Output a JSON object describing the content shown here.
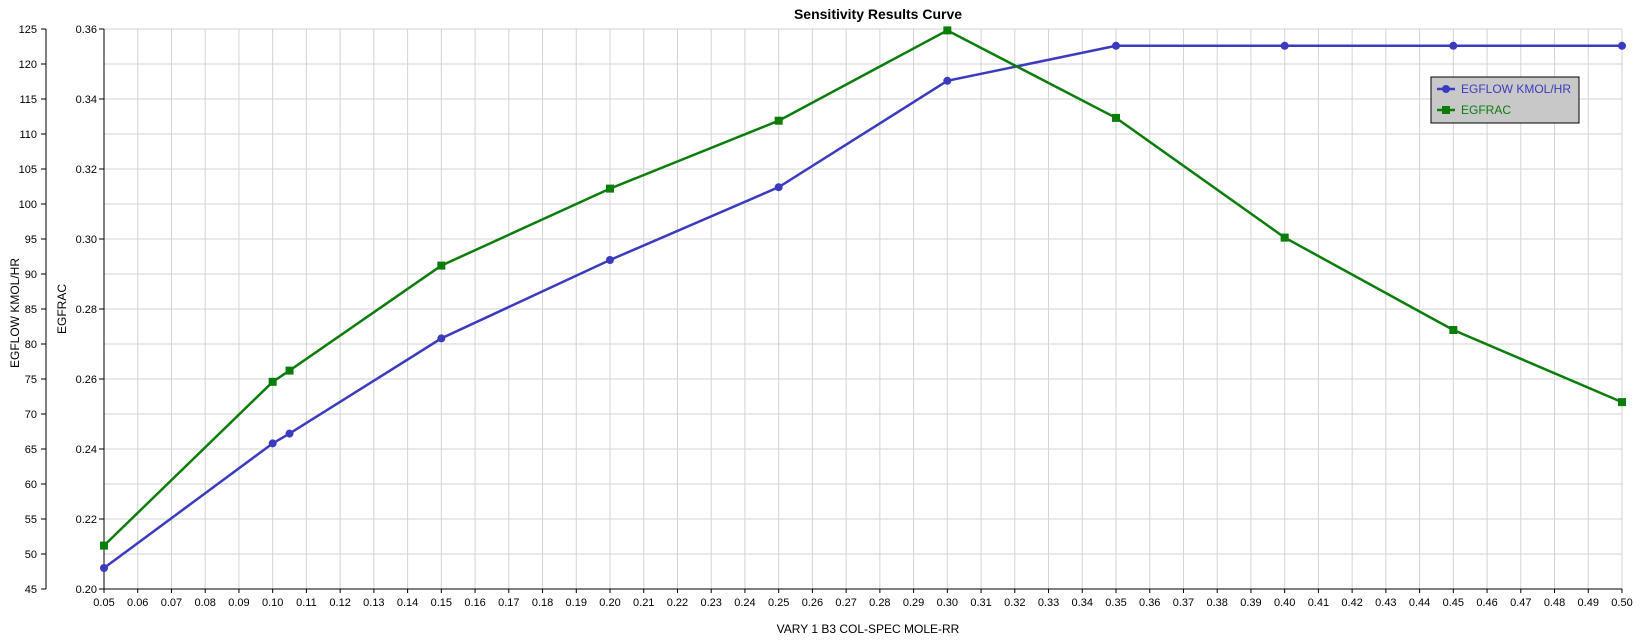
{
  "chart_data": {
    "type": "line",
    "title": "Sensitivity Results Curve",
    "xlabel": "VARY   1 B3 COL-SPEC MOLE-RR",
    "ylabel_left": "EGFLOW KMOL/HR",
    "ylabel_right": "EGFRAC",
    "xlim": [
      0.05,
      0.5
    ],
    "ylim_left": [
      45,
      125
    ],
    "ylim_right": [
      0.2,
      0.36
    ],
    "x_ticks": [
      "0.05",
      "0.06",
      "0.07",
      "0.08",
      "0.09",
      "0.10",
      "0.11",
      "0.12",
      "0.13",
      "0.14",
      "0.15",
      "0.16",
      "0.17",
      "0.18",
      "0.19",
      "0.20",
      "0.21",
      "0.22",
      "0.23",
      "0.24",
      "0.25",
      "0.26",
      "0.27",
      "0.28",
      "0.29",
      "0.30",
      "0.31",
      "0.32",
      "0.33",
      "0.34",
      "0.35",
      "0.36",
      "0.37",
      "0.38",
      "0.39",
      "0.40",
      "0.41",
      "0.42",
      "0.43",
      "0.44",
      "0.45",
      "0.46",
      "0.47",
      "0.48",
      "0.49",
      "0.50"
    ],
    "y_left_ticks": [
      "45",
      "50",
      "55",
      "60",
      "65",
      "70",
      "75",
      "80",
      "85",
      "90",
      "95",
      "100",
      "105",
      "110",
      "115",
      "120",
      "125"
    ],
    "y_right_ticks": [
      "0.20",
      "0.22",
      "0.24",
      "0.26",
      "0.28",
      "0.30",
      "0.32",
      "0.34",
      "0.36"
    ],
    "grid": true,
    "legend_position": "top-right",
    "series": [
      {
        "name": "EGFLOW KMOL/HR",
        "axis": "left",
        "color": "#3b3bbf",
        "marker": "circle",
        "x": [
          0.05,
          0.1,
          0.105,
          0.15,
          0.2,
          0.25,
          0.3,
          0.35,
          0.4,
          0.45,
          0.5
        ],
        "y": [
          48.0,
          65.8,
          67.2,
          80.8,
          92.0,
          102.4,
          117.6,
          122.6,
          122.6,
          122.6,
          122.6
        ]
      },
      {
        "name": "EGFRAC",
        "axis": "right",
        "color": "#0a7d0a",
        "marker": "square",
        "x": [
          0.05,
          0.1,
          0.105,
          0.15,
          0.2,
          0.25,
          0.3,
          0.35,
          0.4,
          0.45,
          0.5
        ],
        "y": [
          0.2124,
          0.2592,
          0.2624,
          0.2924,
          0.3144,
          0.3338,
          0.3596,
          0.3346,
          0.3004,
          0.274,
          0.2534
        ]
      }
    ]
  }
}
